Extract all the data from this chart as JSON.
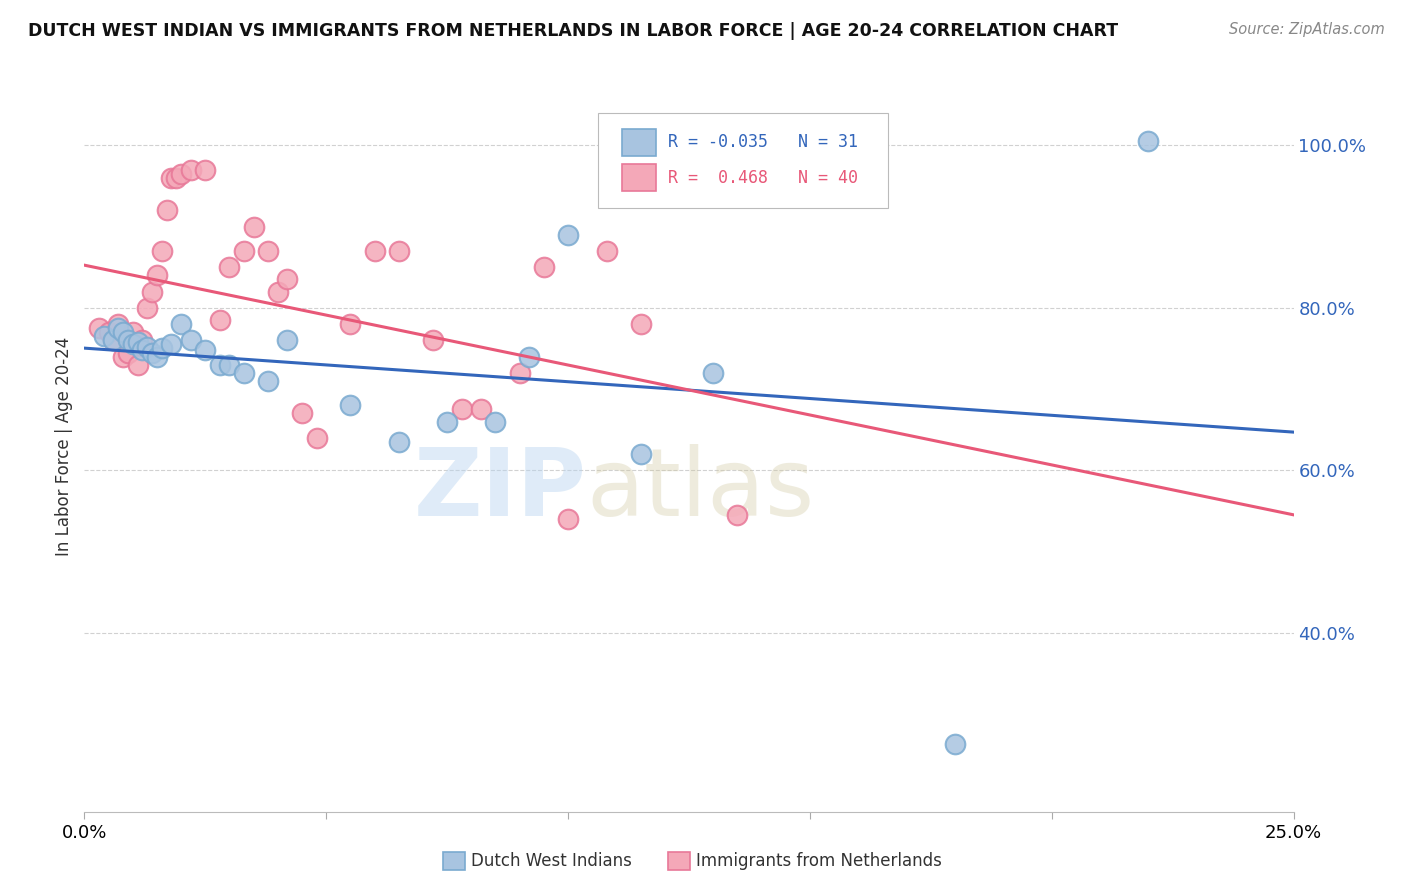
{
  "title": "DUTCH WEST INDIAN VS IMMIGRANTS FROM NETHERLANDS IN LABOR FORCE | AGE 20-24 CORRELATION CHART",
  "source": "Source: ZipAtlas.com",
  "ylabel": "In Labor Force | Age 20-24",
  "legend_label_blue": "Dutch West Indians",
  "legend_label_pink": "Immigrants from Netherlands",
  "R_blue": -0.035,
  "N_blue": 31,
  "R_pink": 0.468,
  "N_pink": 40,
  "xlim": [
    0.0,
    0.25
  ],
  "ylim": [
    0.18,
    1.08
  ],
  "yticks": [
    0.4,
    0.6,
    0.8,
    1.0
  ],
  "ytick_labels": [
    "40.0%",
    "60.0%",
    "80.0%",
    "100.0%"
  ],
  "watermark_zip": "ZIP",
  "watermark_atlas": "atlas",
  "blue_color": "#A8C4E0",
  "blue_edge": "#7AAAD0",
  "pink_color": "#F4A8B8",
  "pink_edge": "#E87898",
  "blue_line_color": "#3366BB",
  "pink_line_color": "#E85878",
  "blue_scatter_x": [
    0.004,
    0.006,
    0.007,
    0.008,
    0.009,
    0.01,
    0.011,
    0.012,
    0.013,
    0.014,
    0.015,
    0.016,
    0.018,
    0.02,
    0.022,
    0.025,
    0.028,
    0.03,
    0.033,
    0.038,
    0.042,
    0.055,
    0.065,
    0.075,
    0.085,
    0.092,
    0.1,
    0.115,
    0.13,
    0.18,
    0.22
  ],
  "blue_scatter_y": [
    0.765,
    0.76,
    0.775,
    0.77,
    0.76,
    0.755,
    0.758,
    0.748,
    0.752,
    0.745,
    0.74,
    0.75,
    0.755,
    0.78,
    0.76,
    0.748,
    0.73,
    0.73,
    0.72,
    0.71,
    0.76,
    0.68,
    0.635,
    0.66,
    0.66,
    0.74,
    0.89,
    0.62,
    0.72,
    0.263,
    1.005
  ],
  "pink_scatter_x": [
    0.003,
    0.005,
    0.006,
    0.007,
    0.008,
    0.009,
    0.01,
    0.011,
    0.012,
    0.013,
    0.014,
    0.015,
    0.016,
    0.017,
    0.018,
    0.019,
    0.02,
    0.022,
    0.025,
    0.028,
    0.03,
    0.033,
    0.035,
    0.038,
    0.04,
    0.042,
    0.045,
    0.048,
    0.055,
    0.06,
    0.065,
    0.072,
    0.078,
    0.082,
    0.09,
    0.095,
    0.1,
    0.108,
    0.115,
    0.135
  ],
  "pink_scatter_y": [
    0.775,
    0.77,
    0.76,
    0.78,
    0.74,
    0.745,
    0.77,
    0.73,
    0.76,
    0.8,
    0.82,
    0.84,
    0.87,
    0.92,
    0.96,
    0.96,
    0.965,
    0.97,
    0.97,
    0.785,
    0.85,
    0.87,
    0.9,
    0.87,
    0.82,
    0.835,
    0.67,
    0.64,
    0.78,
    0.87,
    0.87,
    0.76,
    0.675,
    0.675,
    0.72,
    0.85,
    0.54,
    0.87,
    0.78,
    0.545
  ],
  "background_color": "#FFFFFF",
  "grid_color": "#CCCCCC"
}
